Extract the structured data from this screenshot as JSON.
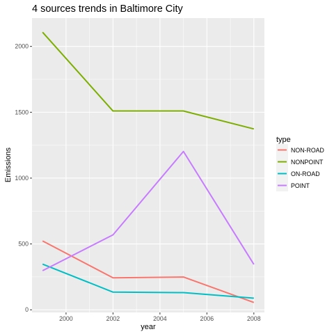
{
  "chart_data": {
    "type": "line",
    "title": "4 sources trends in Baltimore City",
    "xlabel": "year",
    "ylabel": "Emissions",
    "x": [
      1999,
      2002,
      2005,
      2008
    ],
    "xlim": [
      1998.55,
      2008.45
    ],
    "ylim": [
      -20,
      2215
    ],
    "xticks": [
      "2000",
      "2002",
      "2004",
      "2006",
      "2008"
    ],
    "yticks": [
      "0",
      "500",
      "1000",
      "1500",
      "2000"
    ],
    "legend_title": "type",
    "legend_position": "right",
    "grid": true,
    "series": [
      {
        "name": "NON-ROAD",
        "color": "#F8766D",
        "values": [
          522.9,
          242.9,
          248.9,
          55.8
        ]
      },
      {
        "name": "NONPOINT",
        "color": "#7CAE00",
        "values": [
          2107.6,
          1509.5,
          1509.5,
          1373.2
        ]
      },
      {
        "name": "ON-ROAD",
        "color": "#00BFC4",
        "values": [
          346.8,
          134.3,
          130.4,
          88.3
        ]
      },
      {
        "name": "POINT",
        "color": "#C77CFF",
        "values": [
          296.8,
          569.3,
          1202.5,
          344.98
        ]
      }
    ]
  }
}
